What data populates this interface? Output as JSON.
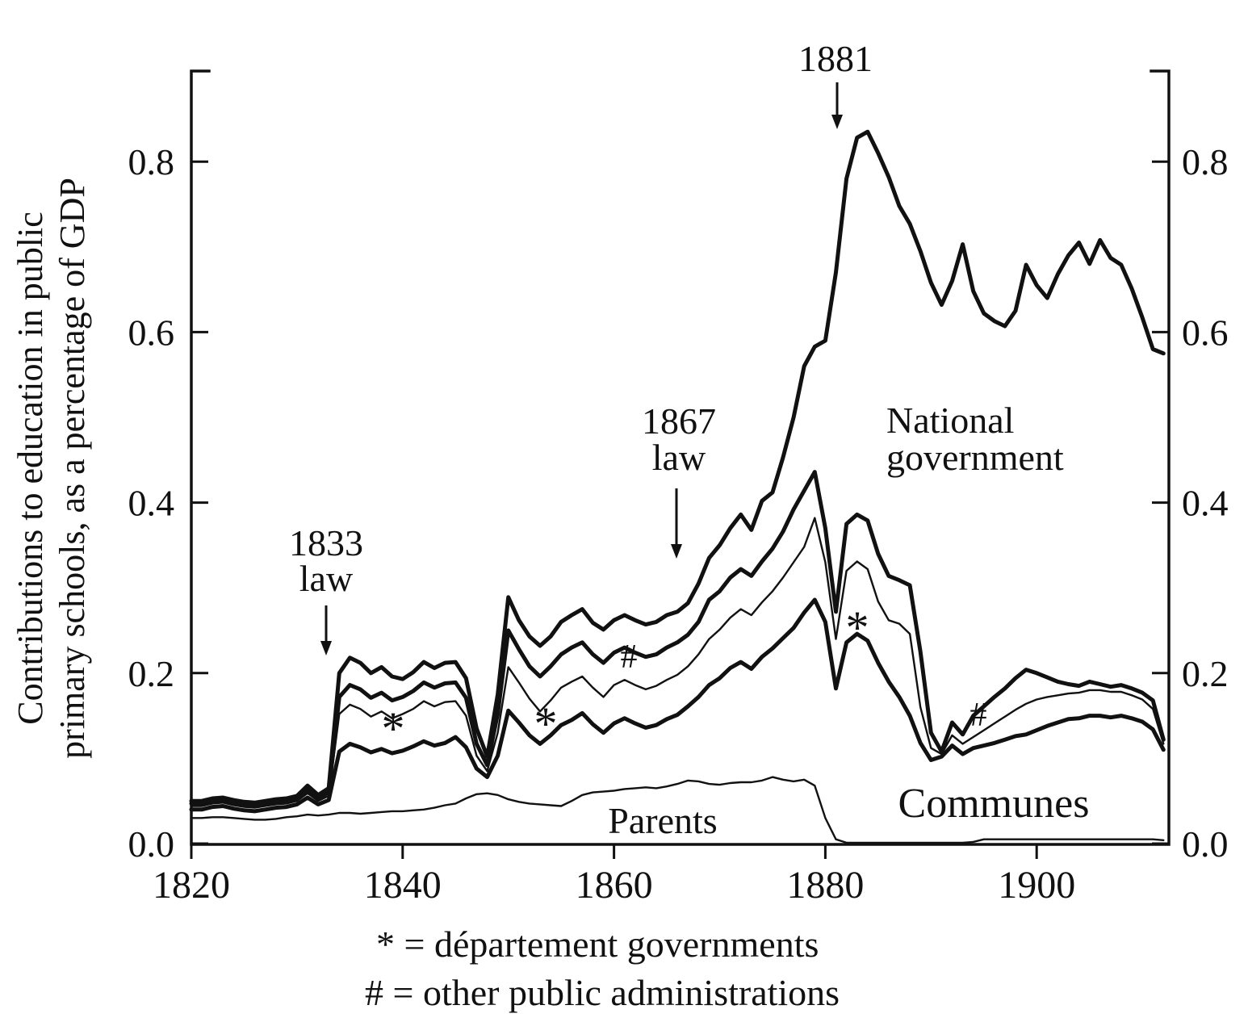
{
  "chart_data": {
    "type": "line",
    "title": "",
    "xlabel": "",
    "ylabel": "Contributions to education in public primary schools, as a percentage of GDP",
    "ylabel_line1": "Contributions to education in public",
    "ylabel_line2": "primary schools, as a percentage of GDP",
    "x_start": 1820,
    "x_end": 1912,
    "x_step": 1,
    "xlim": [
      1820,
      1912.5
    ],
    "ylim": [
      0,
      0.9
    ],
    "grid": false,
    "x_ticks": [
      {
        "label": "1820",
        "value": 1820
      },
      {
        "label": "1840",
        "value": 1840
      },
      {
        "label": "1860",
        "value": 1860
      },
      {
        "label": "1880",
        "value": 1880
      },
      {
        "label": "1900",
        "value": 1900
      }
    ],
    "y_ticks": [
      {
        "label": "0.0",
        "value": 0.0
      },
      {
        "label": "0.2",
        "value": 0.2
      },
      {
        "label": "0.4",
        "value": 0.4
      },
      {
        "label": "0.6",
        "value": 0.6
      },
      {
        "label": "0.8",
        "value": 0.8
      }
    ],
    "series": [
      {
        "id": "total-incl-national-government",
        "label": "National government (top line = total public contributions)",
        "thick": true,
        "values": [
          0.05,
          0.05,
          0.053,
          0.054,
          0.051,
          0.049,
          0.048,
          0.05,
          0.052,
          0.053,
          0.056,
          0.068,
          0.057,
          0.065,
          0.2,
          0.218,
          0.212,
          0.2,
          0.207,
          0.196,
          0.193,
          0.201,
          0.213,
          0.206,
          0.212,
          0.213,
          0.194,
          0.135,
          0.102,
          0.175,
          0.289,
          0.262,
          0.243,
          0.232,
          0.243,
          0.26,
          0.268,
          0.275,
          0.259,
          0.251,
          0.262,
          0.268,
          0.262,
          0.257,
          0.26,
          0.268,
          0.272,
          0.282,
          0.305,
          0.335,
          0.35,
          0.37,
          0.386,
          0.368,
          0.402,
          0.412,
          0.453,
          0.5,
          0.56,
          0.583,
          0.59,
          0.67,
          0.78,
          0.828,
          0.835,
          0.81,
          0.782,
          0.748,
          0.727,
          0.695,
          0.658,
          0.632,
          0.66,
          0.703,
          0.648,
          0.622,
          0.613,
          0.607,
          0.625,
          0.679,
          0.655,
          0.64,
          0.668,
          0.69,
          0.705,
          0.68,
          0.708,
          0.687,
          0.679,
          0.651,
          0.617,
          0.58,
          0.575
        ]
      },
      {
        "id": "cumulative-through-other-public-administrations",
        "label": "Communes + departements + other public administrations (#)",
        "thick": true,
        "values": [
          0.047,
          0.047,
          0.05,
          0.051,
          0.048,
          0.046,
          0.045,
          0.047,
          0.049,
          0.05,
          0.053,
          0.063,
          0.053,
          0.06,
          0.172,
          0.186,
          0.181,
          0.171,
          0.177,
          0.168,
          0.172,
          0.179,
          0.189,
          0.183,
          0.188,
          0.189,
          0.171,
          0.117,
          0.092,
          0.152,
          0.25,
          0.228,
          0.208,
          0.196,
          0.208,
          0.222,
          0.23,
          0.236,
          0.222,
          0.212,
          0.224,
          0.23,
          0.224,
          0.219,
          0.222,
          0.23,
          0.236,
          0.245,
          0.26,
          0.286,
          0.296,
          0.312,
          0.322,
          0.314,
          0.331,
          0.346,
          0.366,
          0.392,
          0.414,
          0.436,
          0.37,
          0.272,
          0.375,
          0.386,
          0.379,
          0.34,
          0.314,
          0.309,
          0.303,
          0.225,
          0.13,
          0.108,
          0.142,
          0.128,
          0.15,
          0.161,
          0.172,
          0.182,
          0.194,
          0.204,
          0.2,
          0.195,
          0.19,
          0.187,
          0.185,
          0.19,
          0.187,
          0.184,
          0.186,
          0.182,
          0.177,
          0.168,
          0.122
        ]
      },
      {
        "id": "cumulative-through-departement-governments",
        "label": "Communes + departement governments (*)",
        "thick": false,
        "values": [
          0.044,
          0.044,
          0.047,
          0.048,
          0.045,
          0.043,
          0.042,
          0.044,
          0.046,
          0.047,
          0.05,
          0.059,
          0.05,
          0.056,
          0.152,
          0.163,
          0.158,
          0.149,
          0.155,
          0.147,
          0.152,
          0.158,
          0.167,
          0.161,
          0.166,
          0.167,
          0.15,
          0.103,
          0.085,
          0.13,
          0.207,
          0.189,
          0.17,
          0.155,
          0.168,
          0.183,
          0.19,
          0.196,
          0.183,
          0.172,
          0.186,
          0.192,
          0.186,
          0.181,
          0.185,
          0.192,
          0.198,
          0.208,
          0.222,
          0.24,
          0.251,
          0.265,
          0.275,
          0.268,
          0.283,
          0.296,
          0.312,
          0.33,
          0.348,
          0.382,
          0.33,
          0.24,
          0.32,
          0.331,
          0.322,
          0.284,
          0.262,
          0.258,
          0.246,
          0.16,
          0.112,
          0.105,
          0.127,
          0.117,
          0.125,
          0.133,
          0.141,
          0.149,
          0.157,
          0.164,
          0.169,
          0.172,
          0.174,
          0.176,
          0.177,
          0.18,
          0.18,
          0.178,
          0.178,
          0.174,
          0.169,
          0.158,
          0.117
        ]
      },
      {
        "id": "communes",
        "label": "Communes",
        "thick": true,
        "values": [
          0.04,
          0.04,
          0.043,
          0.044,
          0.041,
          0.039,
          0.038,
          0.04,
          0.042,
          0.043,
          0.046,
          0.054,
          0.046,
          0.051,
          0.108,
          0.117,
          0.113,
          0.107,
          0.111,
          0.106,
          0.109,
          0.114,
          0.12,
          0.115,
          0.118,
          0.125,
          0.113,
          0.088,
          0.078,
          0.103,
          0.156,
          0.142,
          0.127,
          0.117,
          0.127,
          0.139,
          0.145,
          0.153,
          0.14,
          0.13,
          0.141,
          0.147,
          0.141,
          0.136,
          0.139,
          0.146,
          0.151,
          0.161,
          0.172,
          0.186,
          0.194,
          0.206,
          0.213,
          0.205,
          0.219,
          0.229,
          0.241,
          0.253,
          0.271,
          0.286,
          0.26,
          0.182,
          0.236,
          0.246,
          0.238,
          0.212,
          0.19,
          0.172,
          0.15,
          0.118,
          0.098,
          0.102,
          0.115,
          0.105,
          0.112,
          0.115,
          0.118,
          0.122,
          0.126,
          0.128,
          0.133,
          0.138,
          0.142,
          0.146,
          0.147,
          0.15,
          0.15,
          0.148,
          0.15,
          0.147,
          0.143,
          0.134,
          0.11
        ]
      },
      {
        "id": "parents",
        "label": "Parents",
        "thick": false,
        "values": [
          0.03,
          0.03,
          0.031,
          0.031,
          0.03,
          0.029,
          0.028,
          0.028,
          0.029,
          0.031,
          0.032,
          0.034,
          0.033,
          0.034,
          0.036,
          0.036,
          0.035,
          0.036,
          0.037,
          0.038,
          0.038,
          0.039,
          0.04,
          0.042,
          0.045,
          0.047,
          0.053,
          0.058,
          0.059,
          0.057,
          0.052,
          0.049,
          0.047,
          0.046,
          0.045,
          0.044,
          0.05,
          0.057,
          0.06,
          0.061,
          0.062,
          0.064,
          0.065,
          0.066,
          0.065,
          0.067,
          0.07,
          0.074,
          0.073,
          0.07,
          0.069,
          0.071,
          0.072,
          0.072,
          0.074,
          0.078,
          0.075,
          0.073,
          0.075,
          0.068,
          0.03,
          0.005,
          0.001,
          0.001,
          0.001,
          0.001,
          0.001,
          0.001,
          0.001,
          0.001,
          0.001,
          0.001,
          0.001,
          0.001,
          0.002,
          0.005,
          0.005,
          0.005,
          0.005,
          0.005,
          0.005,
          0.005,
          0.005,
          0.005,
          0.005,
          0.005,
          0.005,
          0.005,
          0.005,
          0.005,
          0.005,
          0.005,
          0.004
        ]
      }
    ],
    "annotations": {
      "law_1833": {
        "line1": "1833",
        "line2": "law"
      },
      "law_1867": {
        "line1": "1867",
        "line2": "law"
      },
      "year_1881": "1881",
      "national_government": {
        "line1": "National",
        "line2": "government"
      },
      "parents": "Parents",
      "communes": "Communes",
      "dept_symbol": "*",
      "other_symbol": "#"
    },
    "legend": [
      "* = département governments",
      "# = other public administrations"
    ],
    "legend_position": "bottom"
  }
}
